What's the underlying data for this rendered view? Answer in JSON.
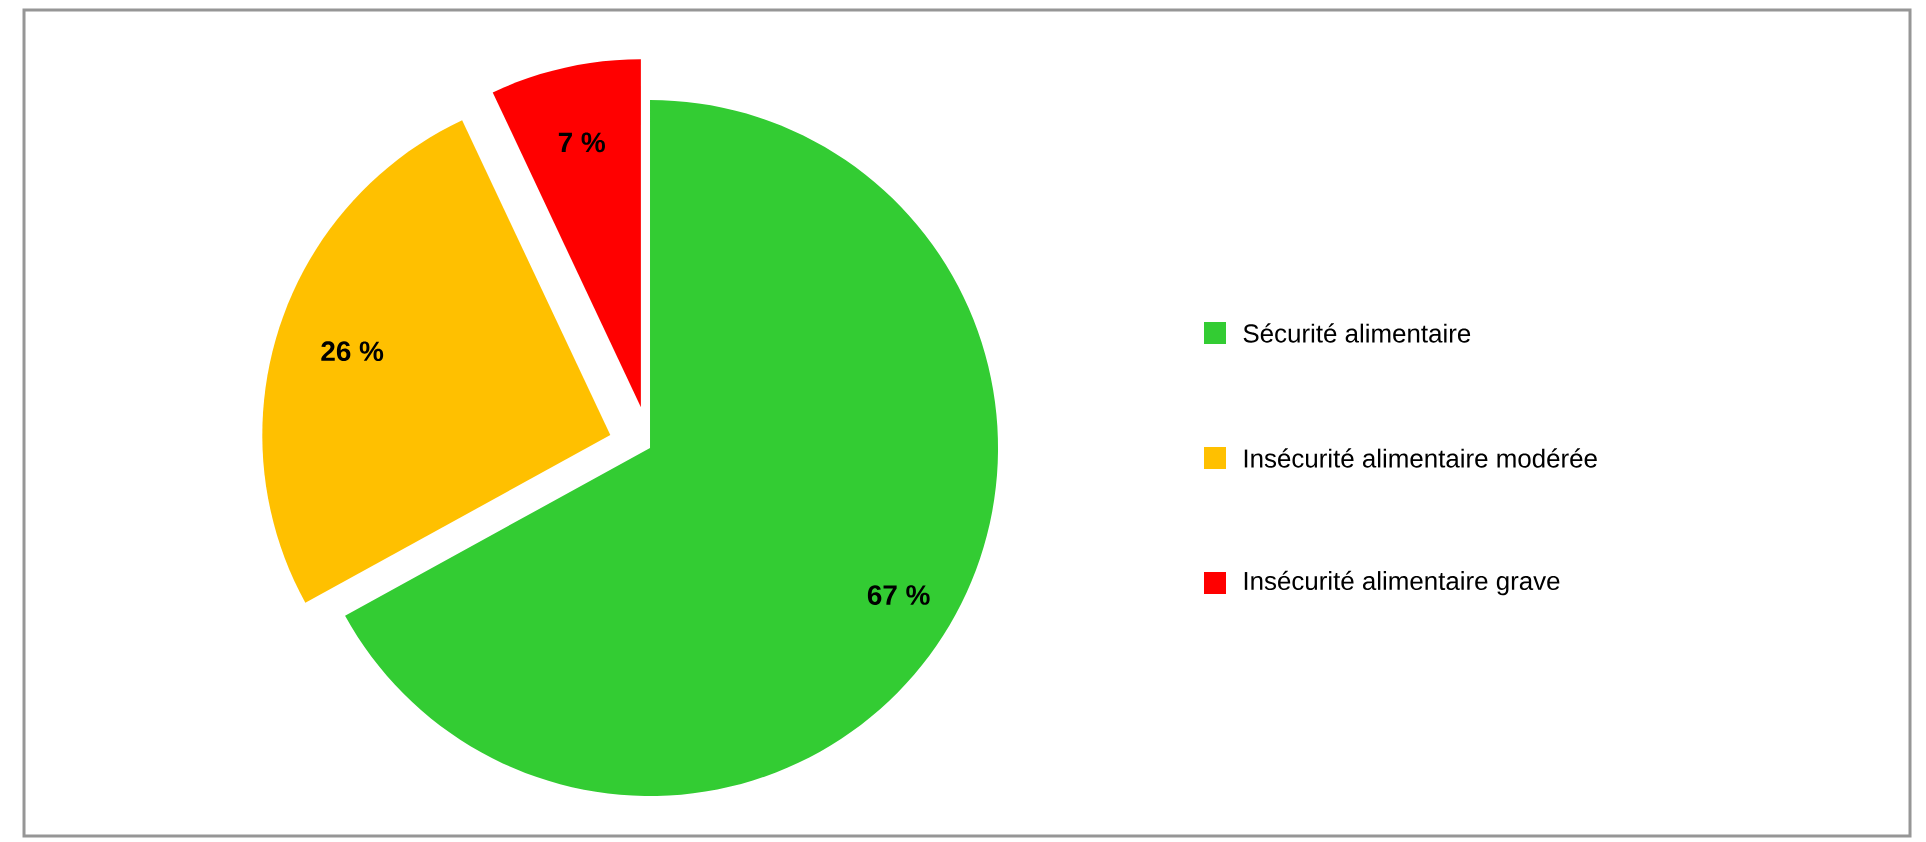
{
  "chart_data": {
    "type": "pie",
    "categories": [
      "Sécurité alimentaire",
      "Insécurité alimentaire modérée",
      "Insécurité alimentaire grave"
    ],
    "values": [
      67,
      26,
      7
    ],
    "colors": [
      "#33cc33",
      "#ffc000",
      "#ff0000"
    ],
    "value_labels": [
      "67 %",
      "26 %",
      "7 %"
    ],
    "legend": "right"
  }
}
